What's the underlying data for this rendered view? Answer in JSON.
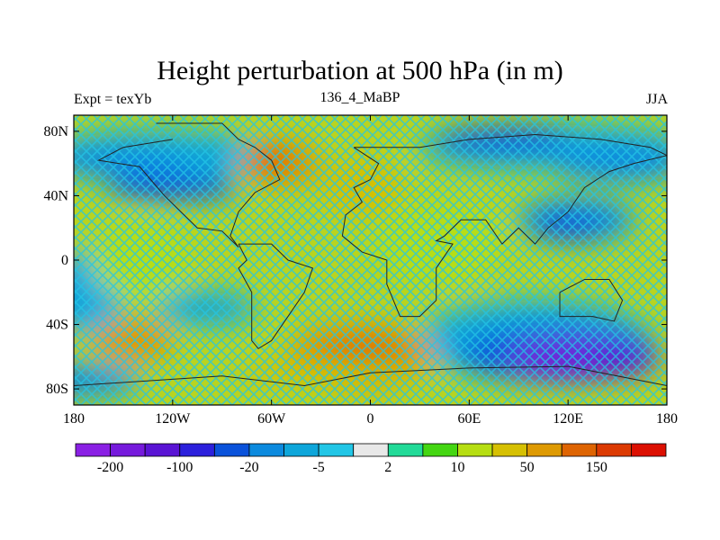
{
  "title": "Height perturbation at 500 hPa (in m)",
  "left_string": "Expt = texYb",
  "center_string": "136_4_MaBP",
  "right_string": "JJA",
  "chart_data": {
    "type": "heatmap",
    "title": "Height perturbation at 500 hPa (in m)",
    "x_ticks": [
      "180",
      "120W",
      "60W",
      "0",
      "60E",
      "120E",
      "180"
    ],
    "x_tick_values": [
      -180,
      -120,
      -60,
      0,
      60,
      120,
      180
    ],
    "y_ticks": [
      "80N",
      "40N",
      "0",
      "40S",
      "80S"
    ],
    "y_tick_values": [
      80,
      40,
      0,
      -40,
      -80
    ],
    "xlim": [
      -180,
      180
    ],
    "ylim": [
      -90,
      90
    ],
    "colorbar": {
      "labels": [
        "-200",
        "-100",
        "-20",
        "-5",
        "2",
        "10",
        "50",
        "150"
      ],
      "colors": [
        "#8a20e4",
        "#761adc",
        "#5a14d4",
        "#2c20dc",
        "#0a52da",
        "#0c8ade",
        "#0ea6da",
        "#22c6e6",
        "#e8e8e8",
        "#22da98",
        "#44d612",
        "#b6de12",
        "#d6c002",
        "#de9a02",
        "#de6402",
        "#dc3a02",
        "#dc1002"
      ]
    }
  }
}
